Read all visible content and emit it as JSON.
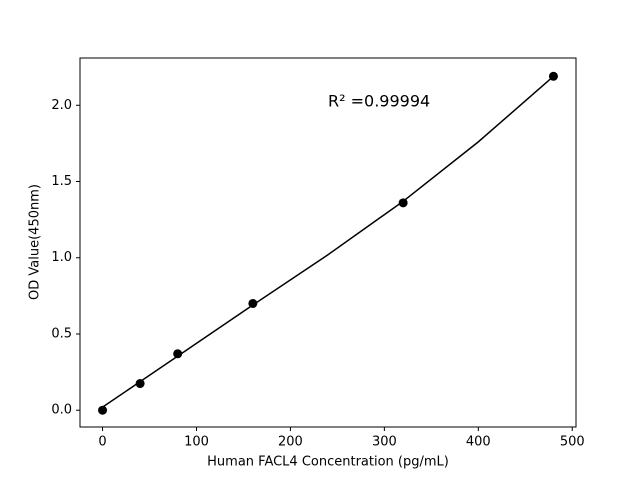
{
  "chart_data": {
    "type": "scatter",
    "xlabel": "Human FACL4 Concentration (pg/mL)",
    "ylabel": "OD Value(450nm)",
    "annotation": "R² =0.99994",
    "x": [
      0,
      40,
      80,
      160,
      320,
      480
    ],
    "values": [
      0.0,
      0.175,
      0.37,
      0.7,
      1.36,
      2.19
    ],
    "color": "#000000",
    "fit": {
      "x": [
        0,
        80,
        160,
        240,
        320,
        400,
        480
      ],
      "values": [
        0.02,
        0.355,
        0.69,
        1.02,
        1.37,
        1.76,
        2.19
      ]
    },
    "xlim": [
      -24,
      504
    ],
    "ylim": [
      -0.11,
      2.31
    ],
    "xticks": [
      0,
      100,
      200,
      300,
      400,
      500
    ],
    "yticks": [
      {
        "value": 0,
        "label": "0.0"
      },
      {
        "value": 0.5,
        "label": "0.5"
      },
      {
        "value": 1,
        "label": "1.0"
      },
      {
        "value": 1.5,
        "label": "1.5"
      },
      {
        "value": 2,
        "label": "2.0"
      }
    ],
    "grid": false
  }
}
